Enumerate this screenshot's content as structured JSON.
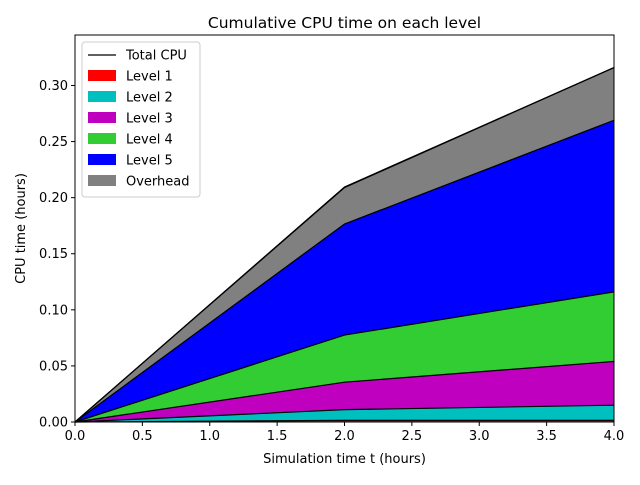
{
  "chart_data": {
    "type": "area",
    "title": "Cumulative CPU time on each level",
    "xlabel": "Simulation time t (hours)",
    "ylabel": "CPU time (hours)",
    "xlim": [
      0,
      4
    ],
    "ylim": [
      0,
      0.345
    ],
    "x_ticks": [
      0,
      0.5,
      1,
      1.5,
      2,
      2.5,
      3,
      3.5,
      4
    ],
    "x_tick_labels": [
      "0.0",
      "0.5",
      "1.0",
      "1.5",
      "2.0",
      "2.5",
      "3.0",
      "3.5",
      "4.0"
    ],
    "y_ticks": [
      0,
      0.05,
      0.1,
      0.15,
      0.2,
      0.25,
      0.3
    ],
    "y_tick_labels": [
      "0.00",
      "0.05",
      "0.10",
      "0.15",
      "0.20",
      "0.25",
      "0.30"
    ],
    "grid": false,
    "stacked": true,
    "legend_position": "upper-left",
    "x": [
      0,
      2,
      4
    ],
    "series": [
      {
        "name": "Level 1",
        "color": "#ff0000",
        "values": [
          0,
          0.0015,
          0.0015
        ]
      },
      {
        "name": "Level 2",
        "color": "#00bfbf",
        "values": [
          0,
          0.0095,
          0.0135
        ]
      },
      {
        "name": "Level 3",
        "color": "#bf00bf",
        "values": [
          0,
          0.0245,
          0.039
        ]
      },
      {
        "name": "Level 4",
        "color": "#32cd32",
        "values": [
          0,
          0.042,
          0.062
        ]
      },
      {
        "name": "Level 5",
        "color": "#0000ff",
        "values": [
          0,
          0.099,
          0.153
        ]
      },
      {
        "name": "Overhead",
        "color": "#808080",
        "values": [
          0,
          0.033,
          0.047
        ]
      }
    ],
    "total_line": {
      "name": "Total CPU",
      "color": "#000000",
      "values": [
        0,
        0.209,
        0.316
      ]
    }
  }
}
